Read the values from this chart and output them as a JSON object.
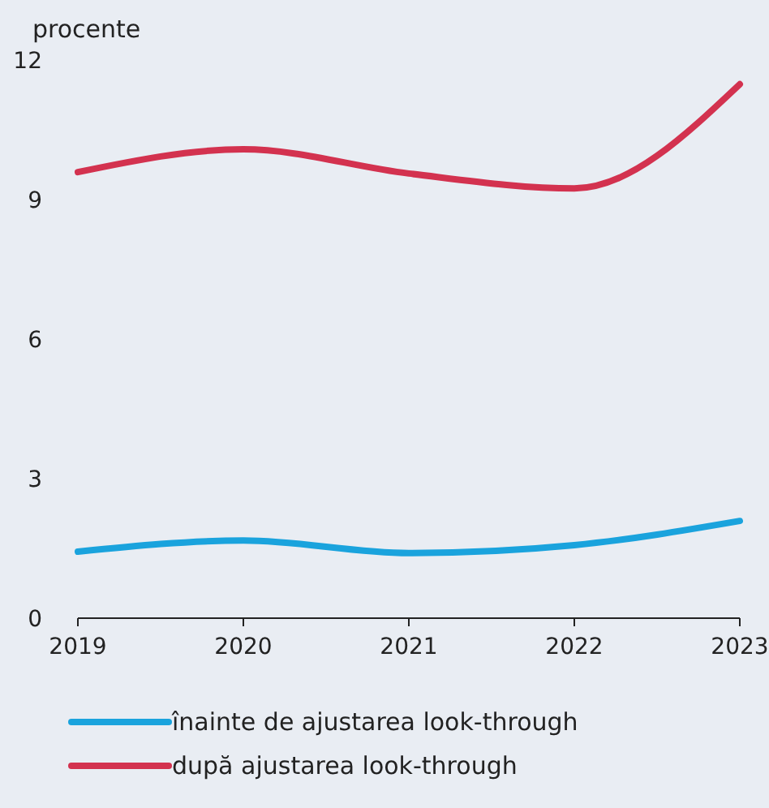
{
  "chart_data": {
    "type": "line",
    "ylabel": "procente",
    "x": [
      2019,
      2020,
      2021,
      2022,
      2023
    ],
    "xlim": [
      2019,
      2023
    ],
    "xticks": [
      2019,
      2020,
      2021,
      2022,
      2023
    ],
    "ylim": [
      0,
      12
    ],
    "yticks": [
      0,
      3,
      6,
      9,
      12
    ],
    "grid": false,
    "legend": "bottom",
    "marker": "none",
    "line_style": "solid",
    "series": [
      {
        "name": "înainte de ajustarea look-through",
        "color": "#1aa3dd",
        "values": [
          1.43,
          1.67,
          1.4,
          1.57,
          2.09
        ]
      },
      {
        "name": "după ajustarea look-through",
        "color": "#d3324f",
        "values": [
          9.59,
          10.08,
          9.56,
          9.24,
          11.48
        ]
      }
    ]
  }
}
